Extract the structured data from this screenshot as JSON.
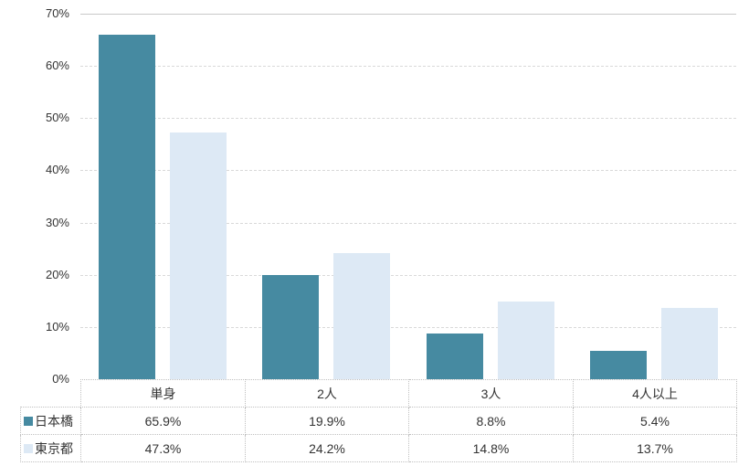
{
  "chart_data": {
    "type": "bar",
    "title": "",
    "xlabel": "",
    "ylabel": "",
    "categories": [
      "単身",
      "2人",
      "3人",
      "4人以上"
    ],
    "series": [
      {
        "name": "日本橋",
        "color": "#468AA1",
        "values": [
          65.9,
          19.9,
          8.8,
          5.4
        ]
      },
      {
        "name": "東京都",
        "color": "#DDE9F5",
        "values": [
          47.3,
          24.2,
          14.8,
          13.7
        ]
      }
    ],
    "ylim": [
      0,
      70
    ],
    "ytick_step": 10,
    "ytick_suffix": "%",
    "value_suffix": "%",
    "value_decimals": 1,
    "grid": "horizontal-dashed",
    "legend_position": "data-table-left-column"
  },
  "colors": {
    "series_1": "#468AA1",
    "series_2": "#DDE9F5",
    "gridline": "#D9D9D9",
    "top_gridline": "#C9C9C9",
    "table_border": "#C0C0C0",
    "text": "#333333",
    "background": "#FFFFFF"
  }
}
